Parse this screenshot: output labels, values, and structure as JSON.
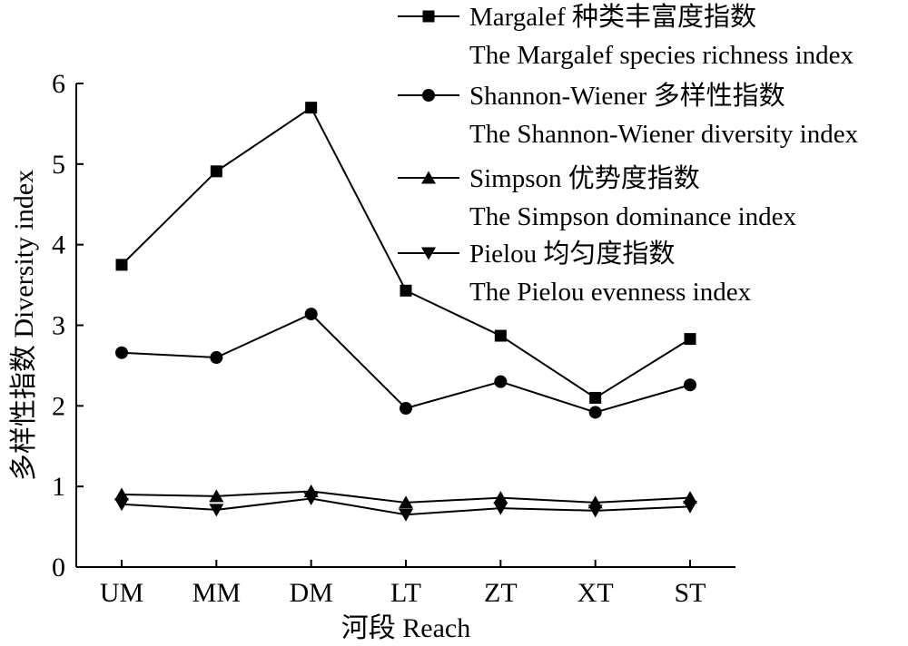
{
  "chart_data": {
    "type": "line",
    "categories": [
      "UM",
      "MM",
      "DM",
      "LT",
      "ZT",
      "XT",
      "ST"
    ],
    "xlabel": "河段 Reach",
    "ylabel": "多样性指数 Diversity index",
    "ylim": [
      0,
      6
    ],
    "yticks": [
      "0",
      "1",
      "2",
      "3",
      "4",
      "5",
      "6"
    ],
    "grid": false,
    "legend_position": "top-right",
    "series": [
      {
        "name": "Margalef 种类丰富度指数",
        "name_en": "The Margalef species richness index",
        "marker": "square",
        "values": [
          3.75,
          4.91,
          5.7,
          3.43,
          2.87,
          2.1,
          2.83
        ]
      },
      {
        "name": "Shannon-Wiener 多样性指数",
        "name_en": "The Shannon-Wiener diversity index",
        "marker": "circle",
        "values": [
          2.66,
          2.6,
          3.14,
          1.97,
          2.3,
          1.92,
          2.26
        ]
      },
      {
        "name": "Simpson 优势度指数",
        "name_en": "The Simpson dominance index",
        "marker": "triangle-up",
        "values": [
          0.9,
          0.88,
          0.94,
          0.8,
          0.86,
          0.8,
          0.86
        ]
      },
      {
        "name": "Pielou 均匀度指数",
        "name_en": "The Pielou evenness index",
        "marker": "triangle-down",
        "values": [
          0.78,
          0.71,
          0.85,
          0.65,
          0.73,
          0.7,
          0.75
        ]
      }
    ]
  }
}
